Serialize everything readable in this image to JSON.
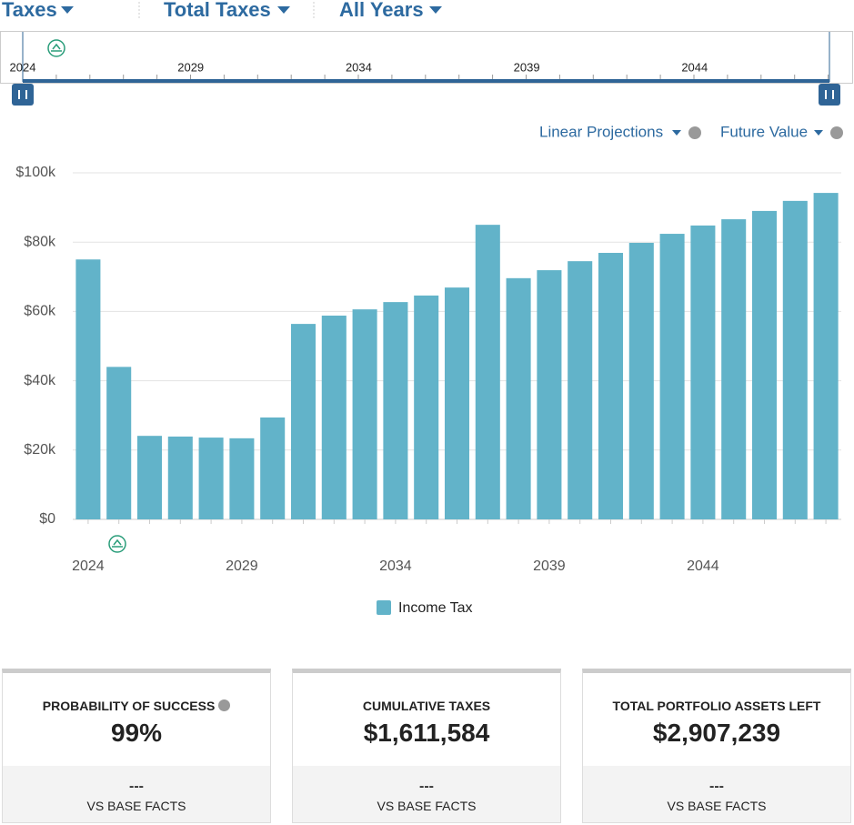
{
  "header": {
    "dropdowns": [
      "Taxes",
      "Total Taxes",
      "All Years"
    ]
  },
  "timeline": {
    "labels": [
      "2024",
      "2029",
      "2034",
      "2039",
      "2044"
    ]
  },
  "options": [
    "Linear Projections",
    "Future Value"
  ],
  "chart_data": {
    "type": "bar",
    "categories": [
      "2024",
      null,
      null,
      null,
      null,
      "2029",
      null,
      null,
      null,
      null,
      "2034",
      null,
      null,
      null,
      null,
      "2039",
      null,
      null,
      null,
      null,
      "2044",
      null,
      null,
      null,
      null
    ],
    "series": [
      {
        "name": "Income Tax",
        "color": "#62b3c9",
        "values": [
          75000,
          44000,
          24100,
          23900,
          23600,
          23400,
          29400,
          56400,
          58800,
          60600,
          62700,
          64600,
          66900,
          85000,
          69600,
          71900,
          74500,
          76900,
          79800,
          82400,
          84800,
          86600,
          89000,
          91900,
          94200
        ]
      }
    ],
    "ylim": [
      0,
      100000
    ],
    "yticks": [
      {
        "value": 0,
        "label": "$0"
      },
      {
        "value": 20000,
        "label": "$20k"
      },
      {
        "value": 40000,
        "label": "$40k"
      },
      {
        "value": 60000,
        "label": "$60k"
      },
      {
        "value": 80000,
        "label": "$80k"
      },
      {
        "value": 100000,
        "label": "$100k"
      }
    ],
    "grid": true
  },
  "cards": [
    {
      "title": "PROBABILITY OF SUCCESS",
      "value": "99%",
      "change": "---",
      "footer": "VS BASE FACTS"
    },
    {
      "title": "CUMULATIVE TAXES",
      "value": "$1,611,584",
      "change": "---",
      "footer": "VS BASE FACTS"
    },
    {
      "title": "TOTAL PORTFOLIO ASSETS LEFT",
      "value": "$2,907,239",
      "change": "---",
      "footer": "VS BASE FACTS"
    }
  ]
}
